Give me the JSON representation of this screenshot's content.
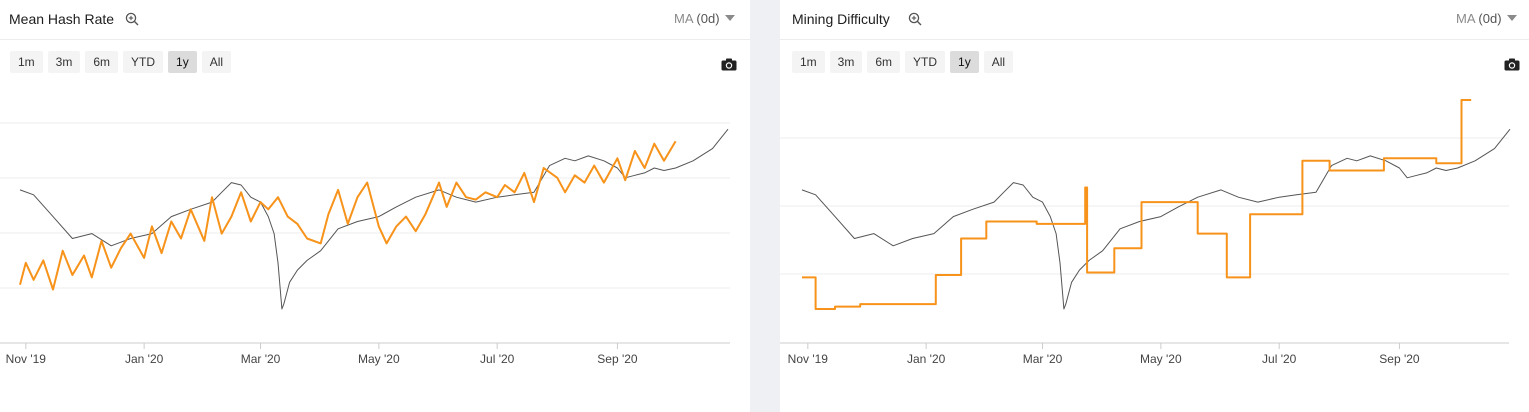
{
  "panels": [
    {
      "title": "Mean Hash Rate",
      "ma_label": "MA",
      "ma_value": "(0d)",
      "range_buttons": [
        "1m",
        "3m",
        "6m",
        "YTD",
        "1y",
        "All"
      ],
      "active_range": "1y"
    },
    {
      "title": "Mining Difficulty",
      "ma_label": "MA",
      "ma_value": "(0d)",
      "range_buttons": [
        "1m",
        "3m",
        "6m",
        "YTD",
        "1y",
        "All"
      ],
      "active_range": "1y"
    }
  ],
  "colors": {
    "metric": "#f7931a",
    "price": "#555555",
    "grid": "#ececec",
    "axis": "#cccccc"
  },
  "icons": [
    "zoom-in-icon",
    "chevron-down-icon",
    "camera-icon"
  ],
  "chart_data": [
    {
      "type": "line",
      "title": "Mean Hash Rate",
      "x_range": [
        "2019-10-29",
        "2020-10-28"
      ],
      "x_ticks": [
        "Nov '19",
        "Jan '20",
        "Mar '20",
        "May '20",
        "Jul '20",
        "Sep '20"
      ],
      "grid": true,
      "series": [
        {
          "color": "#f7931a",
          "x": [
            "2019-10-29",
            "2019-11-01",
            "2019-11-05",
            "2019-11-10",
            "2019-11-15",
            "2019-11-20",
            "2019-11-25",
            "2019-12-01",
            "2019-12-05",
            "2019-12-10",
            "2019-12-15",
            "2019-12-20",
            "2019-12-25",
            "2020-01-01",
            "2020-01-05",
            "2020-01-10",
            "2020-01-15",
            "2020-01-20",
            "2020-01-25",
            "2020-02-01",
            "2020-02-05",
            "2020-02-10",
            "2020-02-15",
            "2020-02-20",
            "2020-02-25",
            "2020-03-01",
            "2020-03-05",
            "2020-03-10",
            "2020-03-15",
            "2020-03-20",
            "2020-03-25",
            "2020-04-01",
            "2020-04-05",
            "2020-04-10",
            "2020-04-15",
            "2020-04-20",
            "2020-04-25",
            "2020-05-01",
            "2020-05-05",
            "2020-05-10",
            "2020-05-15",
            "2020-05-20",
            "2020-05-25",
            "2020-06-01",
            "2020-06-05",
            "2020-06-10",
            "2020-06-15",
            "2020-06-20",
            "2020-06-25",
            "2020-07-01",
            "2020-07-05",
            "2020-07-10",
            "2020-07-15",
            "2020-07-20",
            "2020-07-25",
            "2020-08-01",
            "2020-08-05",
            "2020-08-10",
            "2020-08-15",
            "2020-08-20",
            "2020-08-25",
            "2020-09-01",
            "2020-09-05",
            "2020-09-10",
            "2020-09-15",
            "2020-09-20",
            "2020-09-25",
            "2020-10-01"
          ],
          "values": [
            0.24,
            0.33,
            0.26,
            0.34,
            0.22,
            0.38,
            0.28,
            0.36,
            0.27,
            0.42,
            0.31,
            0.39,
            0.45,
            0.35,
            0.48,
            0.37,
            0.5,
            0.43,
            0.55,
            0.42,
            0.6,
            0.45,
            0.52,
            0.62,
            0.5,
            0.58,
            0.55,
            0.6,
            0.52,
            0.49,
            0.43,
            0.41,
            0.53,
            0.63,
            0.49,
            0.6,
            0.66,
            0.48,
            0.41,
            0.48,
            0.52,
            0.46,
            0.53,
            0.66,
            0.56,
            0.66,
            0.6,
            0.59,
            0.62,
            0.6,
            0.65,
            0.62,
            0.7,
            0.58,
            0.72,
            0.68,
            0.62,
            0.69,
            0.66,
            0.73,
            0.66,
            0.76,
            0.67,
            0.79,
            0.72,
            0.82,
            0.75,
            0.83
          ]
        },
        {
          "color": "#555555",
          "x": [
            "2019-10-29",
            "2019-11-05",
            "2019-11-15",
            "2019-11-25",
            "2019-12-05",
            "2019-12-15",
            "2019-12-25",
            "2020-01-05",
            "2020-01-15",
            "2020-01-25",
            "2020-02-05",
            "2020-02-10",
            "2020-02-15",
            "2020-02-20",
            "2020-02-25",
            "2020-03-01",
            "2020-03-05",
            "2020-03-08",
            "2020-03-10",
            "2020-03-12",
            "2020-03-13",
            "2020-03-16",
            "2020-03-20",
            "2020-03-25",
            "2020-04-01",
            "2020-04-10",
            "2020-04-20",
            "2020-05-01",
            "2020-05-10",
            "2020-05-20",
            "2020-06-01",
            "2020-06-10",
            "2020-06-20",
            "2020-07-01",
            "2020-07-10",
            "2020-07-20",
            "2020-07-28",
            "2020-08-05",
            "2020-08-10",
            "2020-08-17",
            "2020-08-25",
            "2020-09-01",
            "2020-09-05",
            "2020-09-10",
            "2020-09-15",
            "2020-09-20",
            "2020-09-25",
            "2020-10-01",
            "2020-10-10",
            "2020-10-20",
            "2020-10-28"
          ],
          "values": [
            0.63,
            0.61,
            0.52,
            0.43,
            0.45,
            0.4,
            0.43,
            0.45,
            0.52,
            0.55,
            0.58,
            0.62,
            0.66,
            0.65,
            0.6,
            0.58,
            0.52,
            0.45,
            0.33,
            0.14,
            0.16,
            0.25,
            0.3,
            0.34,
            0.38,
            0.47,
            0.5,
            0.52,
            0.56,
            0.6,
            0.63,
            0.6,
            0.58,
            0.6,
            0.61,
            0.62,
            0.73,
            0.76,
            0.75,
            0.77,
            0.75,
            0.72,
            0.68,
            0.69,
            0.7,
            0.72,
            0.71,
            0.72,
            0.75,
            0.8,
            0.88
          ]
        }
      ]
    },
    {
      "type": "line",
      "title": "Mining Difficulty",
      "x_range": [
        "2019-10-29",
        "2020-10-28"
      ],
      "x_ticks": [
        "Nov '19",
        "Jan '20",
        "Mar '20",
        "May '20",
        "Jul '20",
        "Sep '20"
      ],
      "grid": true,
      "series": [
        {
          "color": "#f7931a",
          "step": true,
          "x": [
            "2019-10-29",
            "2019-11-05",
            "2019-11-15",
            "2019-11-28",
            "2019-12-10",
            "2019-12-23",
            "2020-01-06",
            "2020-01-19",
            "2020-02-01",
            "2020-02-14",
            "2020-02-27",
            "2020-03-10",
            "2020-03-23",
            "2020-03-24",
            "2020-04-07",
            "2020-04-21",
            "2020-05-05",
            "2020-05-20",
            "2020-06-04",
            "2020-06-16",
            "2020-06-30",
            "2020-07-13",
            "2020-07-27",
            "2020-08-10",
            "2020-08-24",
            "2020-09-07",
            "2020-09-20",
            "2020-10-03",
            "2020-10-08"
          ],
          "values": [
            0.27,
            0.14,
            0.15,
            0.16,
            0.16,
            0.16,
            0.28,
            0.43,
            0.5,
            0.5,
            0.49,
            0.49,
            0.64,
            0.29,
            0.39,
            0.58,
            0.58,
            0.45,
            0.27,
            0.53,
            0.53,
            0.75,
            0.71,
            0.71,
            0.76,
            0.76,
            0.74,
            1.0,
            1.0
          ]
        },
        {
          "color": "#555555",
          "x": [
            "2019-10-29",
            "2019-11-05",
            "2019-11-15",
            "2019-11-25",
            "2019-12-05",
            "2019-12-15",
            "2019-12-25",
            "2020-01-05",
            "2020-01-15",
            "2020-01-25",
            "2020-02-05",
            "2020-02-10",
            "2020-02-15",
            "2020-02-20",
            "2020-02-25",
            "2020-03-01",
            "2020-03-05",
            "2020-03-08",
            "2020-03-10",
            "2020-03-12",
            "2020-03-13",
            "2020-03-16",
            "2020-03-20",
            "2020-03-25",
            "2020-04-01",
            "2020-04-10",
            "2020-04-20",
            "2020-05-01",
            "2020-05-10",
            "2020-05-20",
            "2020-06-01",
            "2020-06-10",
            "2020-06-20",
            "2020-07-01",
            "2020-07-10",
            "2020-07-20",
            "2020-07-28",
            "2020-08-05",
            "2020-08-10",
            "2020-08-17",
            "2020-08-25",
            "2020-09-01",
            "2020-09-05",
            "2020-09-10",
            "2020-09-15",
            "2020-09-20",
            "2020-09-25",
            "2020-10-01",
            "2020-10-10",
            "2020-10-20",
            "2020-10-28"
          ],
          "values": [
            0.63,
            0.61,
            0.52,
            0.43,
            0.45,
            0.4,
            0.43,
            0.45,
            0.52,
            0.55,
            0.58,
            0.62,
            0.66,
            0.65,
            0.6,
            0.58,
            0.52,
            0.45,
            0.33,
            0.14,
            0.16,
            0.25,
            0.3,
            0.34,
            0.38,
            0.47,
            0.5,
            0.52,
            0.56,
            0.6,
            0.63,
            0.6,
            0.58,
            0.6,
            0.61,
            0.62,
            0.73,
            0.76,
            0.75,
            0.77,
            0.75,
            0.72,
            0.68,
            0.69,
            0.7,
            0.72,
            0.71,
            0.72,
            0.75,
            0.8,
            0.88
          ]
        }
      ]
    }
  ]
}
